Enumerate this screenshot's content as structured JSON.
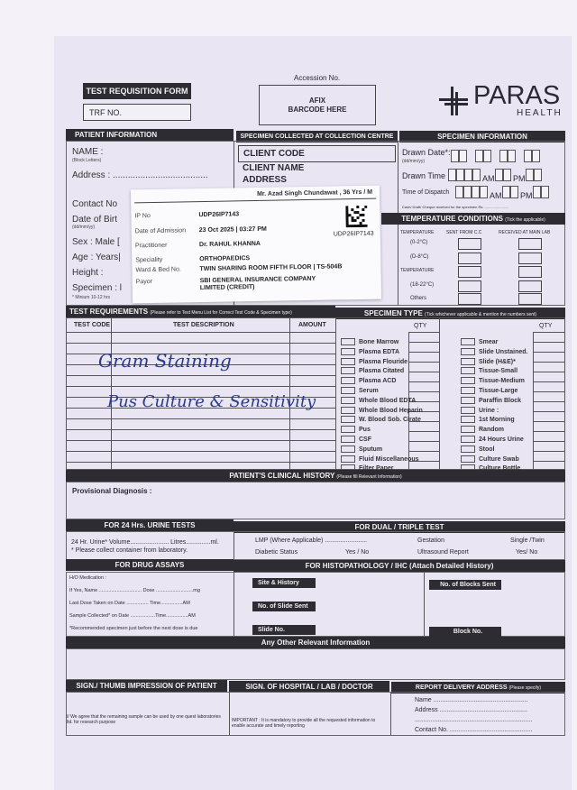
{
  "form": {
    "title": "TEST REQUISITION FORM",
    "trf_label": "TRF NO.",
    "accession_label": "Accession No.",
    "barcode_box": [
      "AFIX",
      "BARCODE HERE"
    ]
  },
  "logo": {
    "name": "PARAS",
    "sub": "HEALTH"
  },
  "patient": {
    "header": "PATIENT INFORMATION",
    "name": "NAME :",
    "name_hint": "(Block Letters)",
    "address": "Address : ......................................",
    "contact": "Contact No",
    "dob": "Date of Birt",
    "dob_hint": "(dd/mm/yy)",
    "sex": "Sex : Male [",
    "age": "Age : Years|",
    "height": "Height :",
    "specimen": "Specimen : l",
    "minimum": "* Minium 10-12 hrs"
  },
  "collection": {
    "header": "SPECIMEN COLLECTED AT COLLECTION CENTRE",
    "client_code": "CLIENT CODE",
    "client_name": "CLIENT NAME",
    "address": "ADDRESS"
  },
  "specimen_info": {
    "header": "SPECIMEN INFORMATION",
    "drawn_date": "Drawn Date*:",
    "drawn_date_hint": "(dd/mm/yy)",
    "drawn_time": "Drawn Time",
    "time_dispatch": "Time of Dispatch",
    "am": "AM",
    "pm": "PM",
    "cash": "Cash/ Draft/ Cheque received for the specimen Rs. ........................"
  },
  "temperature": {
    "header": "TEMPERATURE CONDITIONS",
    "header_note": "(Tick the applicable)",
    "col1": "TEMPERATURE",
    "col2": "SENT FROM C.C",
    "col3": "RECEIVED AT MAIN LAB",
    "rows": [
      "(0-2°C)",
      "(D-8°C)",
      "TEMPERATURE",
      "(18-22°C)",
      "Others"
    ]
  },
  "sticker": {
    "patient": "Mr. Azad Singh Chundawat , 36 Yrs / M",
    "barcode_text": "UDP26IP7143",
    "fields": [
      {
        "k": "IP No",
        "v": "UDP26IP7143"
      },
      {
        "k": "Date of Admission",
        "v": "23 Oct 2025 | 03:27 PM"
      },
      {
        "k": "Practitioner",
        "v": "Dr. RAHUL KHANNA"
      },
      {
        "k": "Speciality",
        "v": "ORTHOPAEDICS"
      },
      {
        "k": "Ward & Bed No.",
        "v": "TWIN SHARING ROOM FIFTH FLOOR | TS-504B"
      },
      {
        "k": "Payor",
        "v": "SBI GENERAL INSURANCE COMPANY LIMITED (CREDIT)"
      }
    ]
  },
  "tests": {
    "header": "TEST REQUIREMENTS",
    "header_note": "(Please refer to Test Menu List for Correct Test Code & Specimen type)",
    "col_code": "TEST CODE",
    "col_desc": "TEST DESCRIPTION",
    "col_amount": "AMOUNT",
    "handwritten": [
      "Gram Staining",
      "Pus Culture & Sensitivity"
    ]
  },
  "specimen_type": {
    "header": "SPECIMEN TYPE",
    "header_note": "(Tick whichever applicable & mention the numbers sent)",
    "qty": "QTY",
    "left": [
      "Bone Marrow",
      "Plasma EDTA",
      "Plasma Flouride",
      "Plasma Citated",
      "Plasma ACD",
      "Serum",
      "Whole Blood EDTA",
      "Whole Blood Heparin",
      "W. Blood Sob. Cirate",
      "Pus",
      "CSF",
      "Sputum",
      "Fluid Miscellaneous",
      "Filter Paper"
    ],
    "right": [
      "Smear",
      "Slide Unstained.",
      "Slide (H&E)*",
      "Tissue-Small",
      "Tissue-Medium",
      "Tissue-Large",
      "Paraffin Block",
      "Urine :",
      "1st Morning",
      "Random",
      "24 Hours Urine",
      "Stool",
      "Culture Swab",
      "Culture Bottle"
    ]
  },
  "clinical": {
    "header": "PATIENT'S CLINICAL HISTORY",
    "header_note": "(Please fill Relevant Information)",
    "provisional": "Provisional Diagnosis :"
  },
  "urine": {
    "header": "FOR 24 Hrs. URINE TESTS",
    "line1": "24 Hr. Urine* Volume...................... Litres..............ml.",
    "line2": "* Please collect container from laboratory."
  },
  "dual": {
    "header": "FOR DUAL / TRIPLE TEST",
    "lmp": "LMP (Where Applicable) ........................",
    "gestation": "Gestation",
    "single_twin": "Single /Twin",
    "diabetic": "Diabetic Status",
    "yes_no1": "Yes / No",
    "ultrasound": "Ultrasound Report",
    "yes_no2": "Yes/ No"
  },
  "drug": {
    "header": "FOR DRUG ASSAYS",
    "lines": [
      "H/O Medication :",
      "If Yes, Name ............................... Dose ...........................mg",
      "Last Dose Taken     on Date ................ Time................AM",
      "Sample Collected*   on Date ..................Time................AM",
      "*Recommended specimen just before the next dose is due"
    ]
  },
  "histo": {
    "header": "FOR HISTOPATHOLOGY / IHC (Attach Detailed History)",
    "site": "Site & History",
    "slides_sent": "No. of Slide Sent",
    "slide_no": "Slide No.",
    "blocks_sent": "No. of Blocks Sent",
    "block_no": "Block No."
  },
  "other": {
    "header": "Any Other Relevant Information"
  },
  "sign": {
    "patient_header": "SIGN./ THUMB IMPRESSION OF PATIENT",
    "patient_note": "I/ We agree that the remaining sample can be used by one quest laboratories ltd. for research purpose",
    "hospital_header": "SIGN. OF HOSPITAL / LAB / DOCTOR",
    "hospital_note": "IMPORTANT : It is mandatory to provide all the requested information to enable accurate and timely reporting",
    "report_header": "REPORT DELIVERY ADDRESS",
    "report_note": "(Please specify)",
    "name": "Name ......................................................",
    "address": "Address ..................................................",
    "blank": "...................................................................",
    "contact": "Contact No. ..............................................."
  }
}
